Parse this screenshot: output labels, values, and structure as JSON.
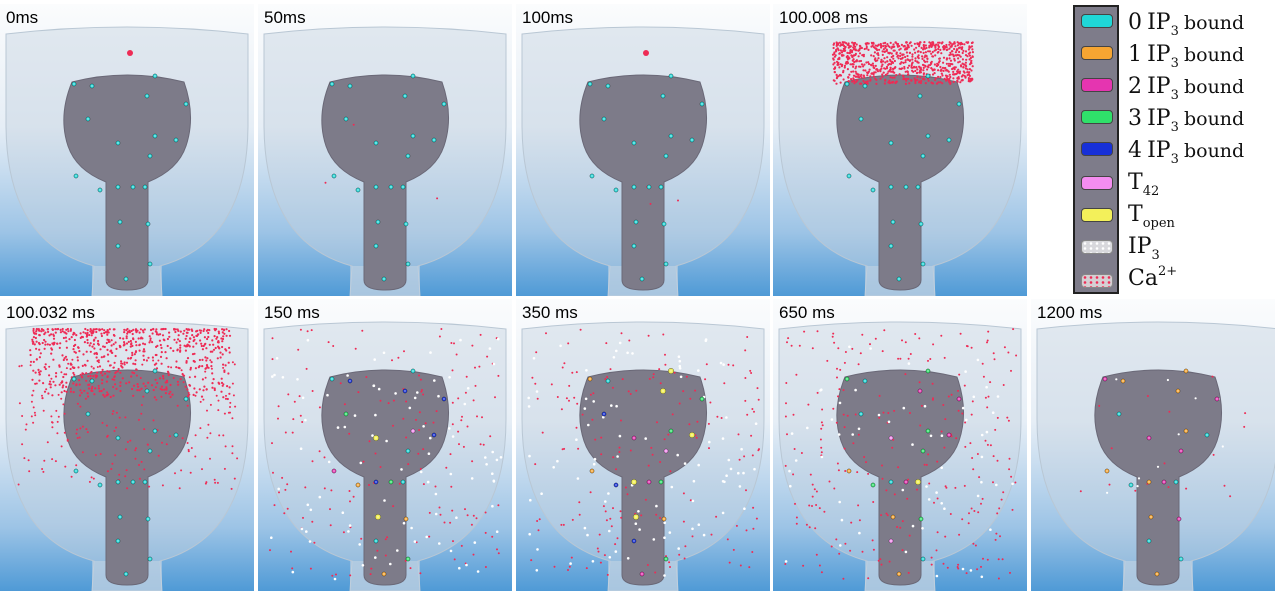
{
  "panels": [
    {
      "label": "0ms",
      "state": "rest-pre"
    },
    {
      "label": "50ms",
      "state": "rest-sparse"
    },
    {
      "label": "100ms",
      "state": "rest-pre"
    },
    {
      "label": "100.008 ms",
      "state": "puff-tight"
    },
    {
      "label": "100.032 ms",
      "state": "puff-spread"
    },
    {
      "label": "150 ms",
      "state": "mixed-blue"
    },
    {
      "label": "350 ms",
      "state": "mixed-yellow"
    },
    {
      "label": "650 ms",
      "state": "mixed-magenta"
    },
    {
      "label": "1200 ms",
      "state": "late"
    }
  ],
  "legend": {
    "items": [
      {
        "num": "0",
        "species": "IP",
        "sub": "3",
        "tail": "bound",
        "color": "#1fd7d7"
      },
      {
        "num": "1",
        "species": "IP",
        "sub": "3",
        "tail": "bound",
        "color": "#f6a532"
      },
      {
        "num": "2",
        "species": "IP",
        "sub": "3",
        "tail": "bound",
        "color": "#e535b0"
      },
      {
        "num": "3",
        "species": "IP",
        "sub": "3",
        "tail": "bound",
        "color": "#2fe06a"
      },
      {
        "num": "4",
        "species": "IP",
        "sub": "3",
        "tail": "bound",
        "color": "#1730d8"
      },
      {
        "num": "",
        "species": "T",
        "sub": "42",
        "tail": "",
        "color": "#f48df0"
      },
      {
        "num": "",
        "species": "T",
        "sub": "open",
        "tail": "",
        "color": "#f3f05a"
      },
      {
        "num": "",
        "species": "IP",
        "sub": "3",
        "tail": "",
        "color": "#d8d8dc",
        "dots": "#ffffff"
      },
      {
        "num": "",
        "species": "Ca",
        "sup": "2+",
        "tail": "",
        "color": "#d5cfd3",
        "dots": "#ee2b55"
      }
    ]
  },
  "colors": {
    "cytosol_body": "#7d7b89",
    "membrane": "#c6d3df",
    "ca": "#ee2b55",
    "ip3": "#ffffff",
    "r0": "#1fd7d7",
    "r1": "#f6a532",
    "r2": "#e535b0",
    "r3": "#2fe06a",
    "r4": "#1730d8",
    "t42": "#f48df0",
    "topen": "#f3f05a"
  }
}
